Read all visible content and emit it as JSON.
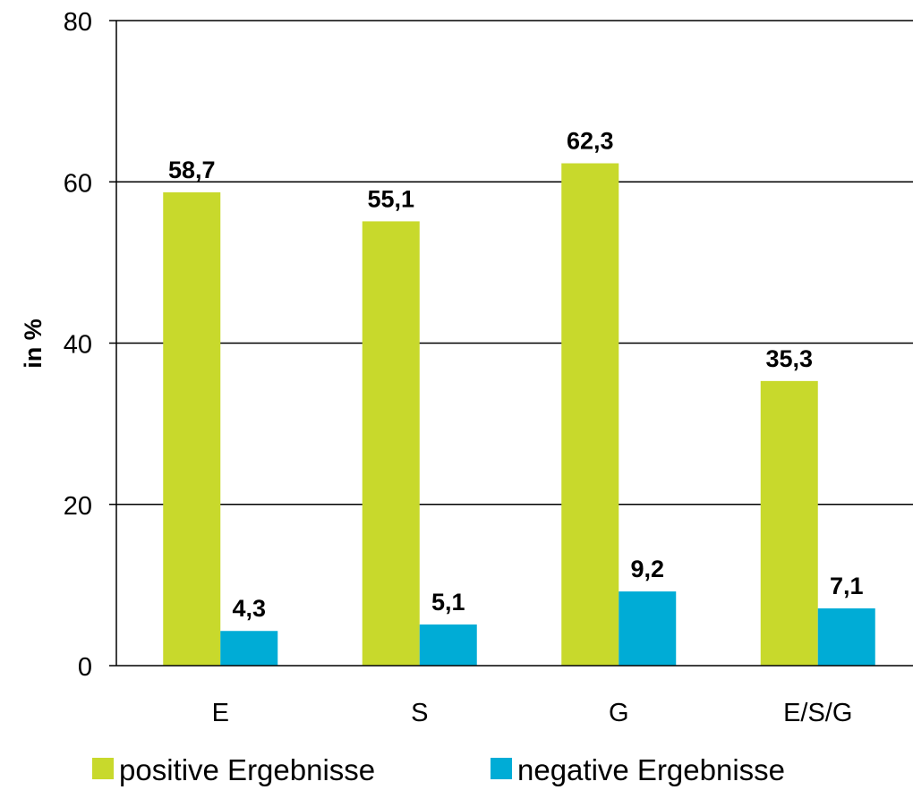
{
  "chart_data": {
    "type": "bar",
    "categories": [
      "E",
      "S",
      "G",
      "E/S/G"
    ],
    "series": [
      {
        "name": "positive Ergebnisse",
        "color": "#c8d92c",
        "values": [
          58.7,
          55.1,
          62.3,
          35.3
        ],
        "labels": [
          "58,7",
          "55,1",
          "62,3",
          "35,3"
        ]
      },
      {
        "name": "negative Ergebnisse",
        "color": "#00acd6",
        "values": [
          4.3,
          5.1,
          9.2,
          7.1
        ],
        "labels": [
          "4,3",
          "5,1",
          "9,2",
          "7,1"
        ]
      }
    ],
    "ylabel": "in  %",
    "ylim": [
      0,
      80
    ],
    "yticks": [
      0,
      20,
      40,
      60,
      80
    ],
    "ytick_labels": [
      "0",
      "20",
      "40",
      "60",
      "80"
    ],
    "grid": true,
    "legend_position": "bottom"
  }
}
